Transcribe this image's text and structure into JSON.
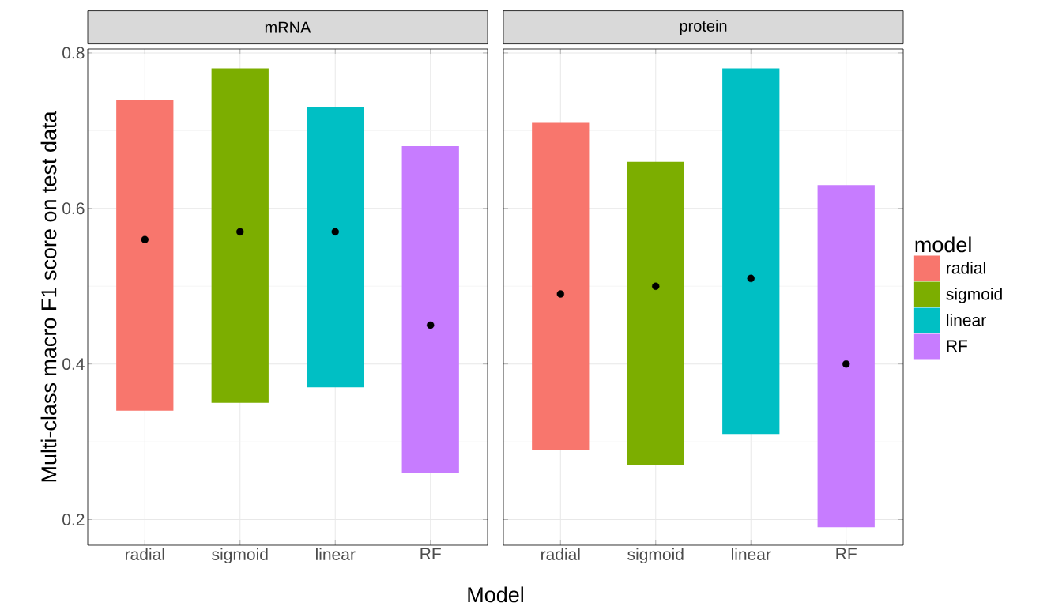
{
  "chart_data": [
    {
      "type": "bar",
      "title": "mRNA",
      "xlabel": "Model",
      "ylabel": "Multi-class macro F1 score on test data",
      "categories": [
        "radial",
        "sigmoid",
        "linear",
        "RF"
      ],
      "series": [
        {
          "color": "#f8766d",
          "values": [
            0.4,
            null,
            null,
            null
          ],
          "base": [
            0.34,
            null,
            null,
            null
          ]
        },
        {
          "color": "#7cae00",
          "values": [
            null,
            0.43,
            null,
            null
          ],
          "base": [
            null,
            0.35,
            null,
            null
          ]
        },
        {
          "color": "#00bfc4",
          "values": [
            null,
            null,
            0.36,
            null
          ],
          "base": [
            null,
            null,
            0.37,
            null
          ]
        },
        {
          "color": "#c77cff",
          "values": [
            null,
            null,
            null,
            0.42
          ],
          "base": [
            null,
            null,
            null,
            0.26
          ]
        },
        {
          "type": "scatter",
          "x": [
            "radial",
            "sigmoid",
            "linear",
            "RF"
          ],
          "values": [
            0.56,
            0.57,
            0.57,
            0.45
          ],
          "color": "#000000",
          "marker": "circle"
        }
      ],
      "ylim": [
        0.167,
        0.805
      ],
      "yticks": [
        0.2,
        0.4,
        0.6,
        0.8
      ],
      "grid": true,
      "legend": false
    },
    {
      "type": "bar",
      "title": "protein",
      "legend_title": "model",
      "categories": [
        "radial",
        "sigmoid",
        "linear",
        "RF"
      ],
      "series": [
        {
          "name": "radial",
          "color": "#f8766d",
          "values": [
            0.42,
            null,
            null,
            null
          ],
          "base": [
            0.29,
            null,
            null,
            null
          ]
        },
        {
          "name": "sigmoid",
          "color": "#7cae00",
          "values": [
            null,
            0.39,
            null,
            null
          ],
          "base": [
            null,
            0.27,
            null,
            null
          ]
        },
        {
          "name": "linear",
          "color": "#00bfc4",
          "values": [
            null,
            null,
            0.47,
            null
          ],
          "base": [
            null,
            null,
            0.31,
            null
          ]
        },
        {
          "name": "RF",
          "color": "#c77cff",
          "values": [
            null,
            null,
            null,
            0.44
          ],
          "base": [
            null,
            null,
            null,
            0.19
          ]
        },
        {
          "type": "scatter",
          "x": [
            "radial",
            "sigmoid",
            "linear",
            "RF"
          ],
          "values": [
            0.49,
            0.5,
            0.51,
            0.4
          ],
          "color": "#000000",
          "marker": "circle"
        }
      ],
      "ylim": [
        0.167,
        0.805
      ],
      "yticks": [
        0.2,
        0.4,
        0.6,
        0.8
      ],
      "grid": true,
      "legend": "right",
      "tick_labels": "x"
    }
  ]
}
